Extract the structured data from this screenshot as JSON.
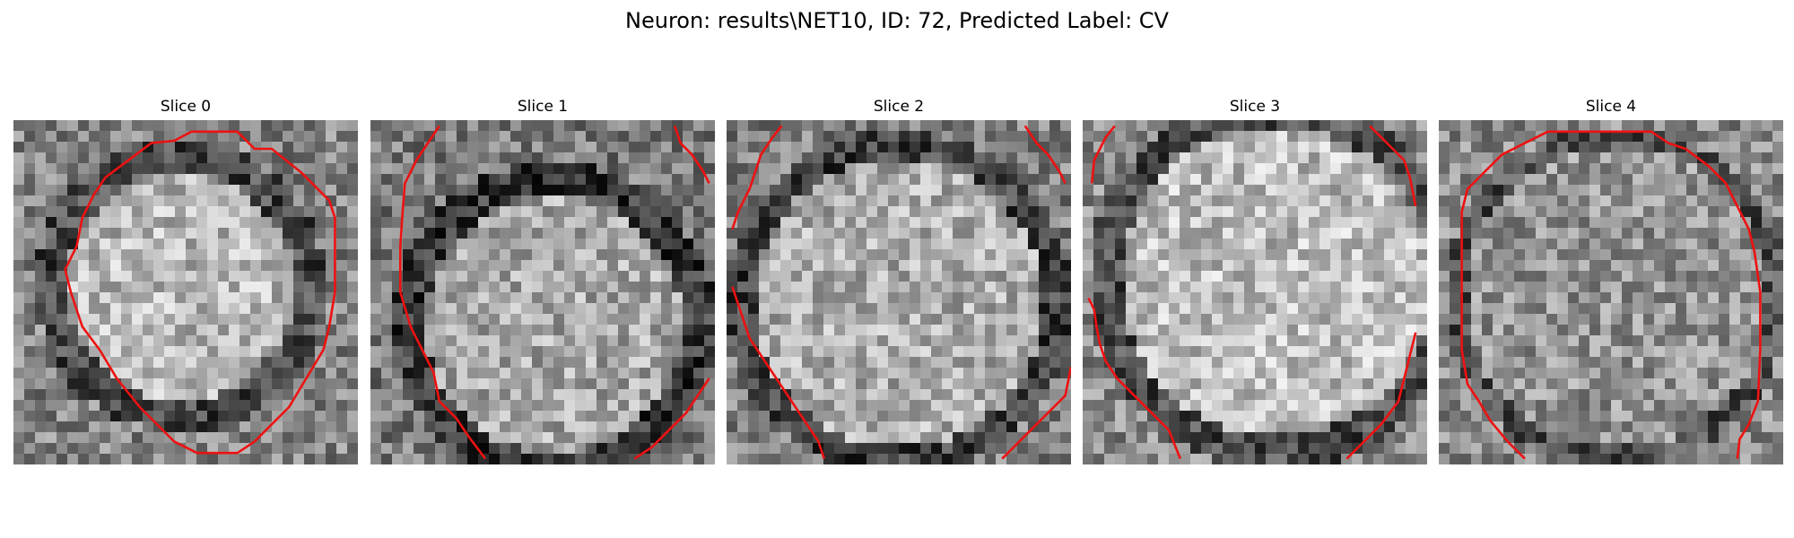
{
  "figure": {
    "title": "Neuron: results\\NET10, ID: 72, Predicted Label: CV"
  },
  "slices": [
    {
      "title": "Slice 0",
      "seed": 11,
      "brightness": "centered-disc",
      "contour_style": "closed-ring"
    },
    {
      "title": "Slice 1",
      "seed": 23,
      "brightness": "lower-disc",
      "contour_style": "partial-arcs"
    },
    {
      "title": "Slice 2",
      "seed": 37,
      "brightness": "large-disc",
      "contour_style": "partial-arcs"
    },
    {
      "title": "Slice 3",
      "seed": 51,
      "brightness": "bright-disc",
      "contour_style": "partial-arcs"
    },
    {
      "title": "Slice 4",
      "seed": 67,
      "brightness": "dim-disc",
      "contour_style": "closed-ring"
    }
  ],
  "colors": {
    "contour": "#ee1111",
    "background": "#ffffff"
  }
}
